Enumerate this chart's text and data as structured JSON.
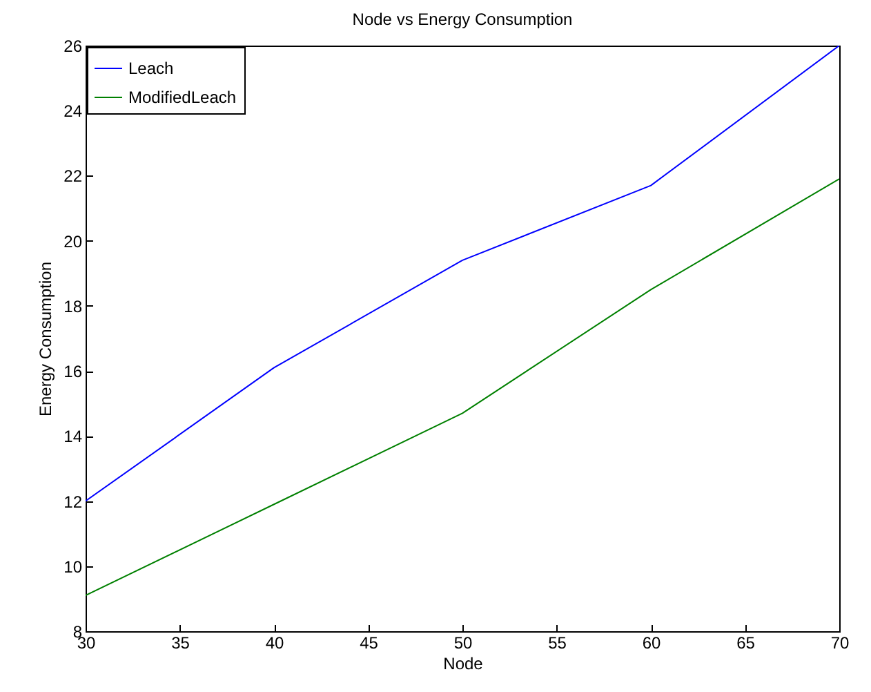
{
  "chart_data": {
    "type": "line",
    "title": "Node vs Energy Consumption",
    "xlabel": "Node",
    "ylabel": "Energy Consumption",
    "x": [
      30,
      40,
      50,
      60,
      70
    ],
    "series": [
      {
        "name": "Leach",
        "color": "#0000ff",
        "values": [
          12,
          16.1,
          19.4,
          21.7,
          26
        ]
      },
      {
        "name": "ModifiedLeach",
        "color": "#008000",
        "values": [
          9.1,
          11.9,
          14.7,
          18.5,
          21.9
        ]
      }
    ],
    "xlim": [
      30,
      70
    ],
    "xticks": [
      30,
      35,
      40,
      45,
      50,
      55,
      60,
      65,
      70
    ],
    "ylim": [
      8,
      26
    ],
    "yticks": [
      8,
      10,
      12,
      14,
      16,
      18,
      20,
      22,
      24,
      26
    ],
    "grid": false,
    "legend": "top left",
    "marker": "none",
    "line_style": "solid"
  }
}
